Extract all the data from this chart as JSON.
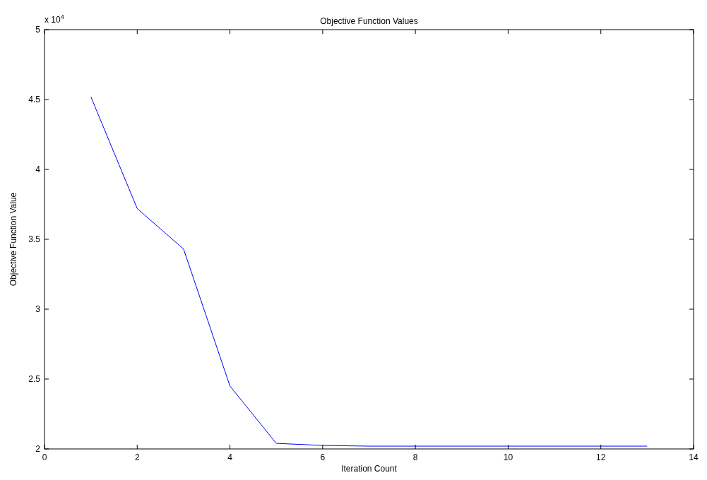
{
  "chart_data": {
    "type": "line",
    "title": "Objective Function Values",
    "xlabel": "Iteration Count",
    "ylabel": "Objective Function Value",
    "annotations": [
      "x 10$^{4}$"
    ],
    "x": [
      1,
      2,
      3,
      4,
      5,
      6,
      7,
      8,
      9,
      10,
      11,
      12,
      13
    ],
    "series": [
      {
        "color": "#0000ff",
        "values": [
          4.52,
          3.72,
          3.43,
          2.45,
          2.04,
          2.025,
          2.02,
          2.02,
          2.02,
          2.02,
          2.02,
          2.02,
          2.02
        ]
      }
    ],
    "xlim": [
      0,
      14
    ],
    "xticks": [
      0,
      2,
      4,
      6,
      8,
      10,
      12,
      14
    ],
    "ylim": [
      2,
      5
    ],
    "yticks": [
      2,
      2.5,
      3,
      3.5,
      4,
      4.5,
      5
    ]
  }
}
